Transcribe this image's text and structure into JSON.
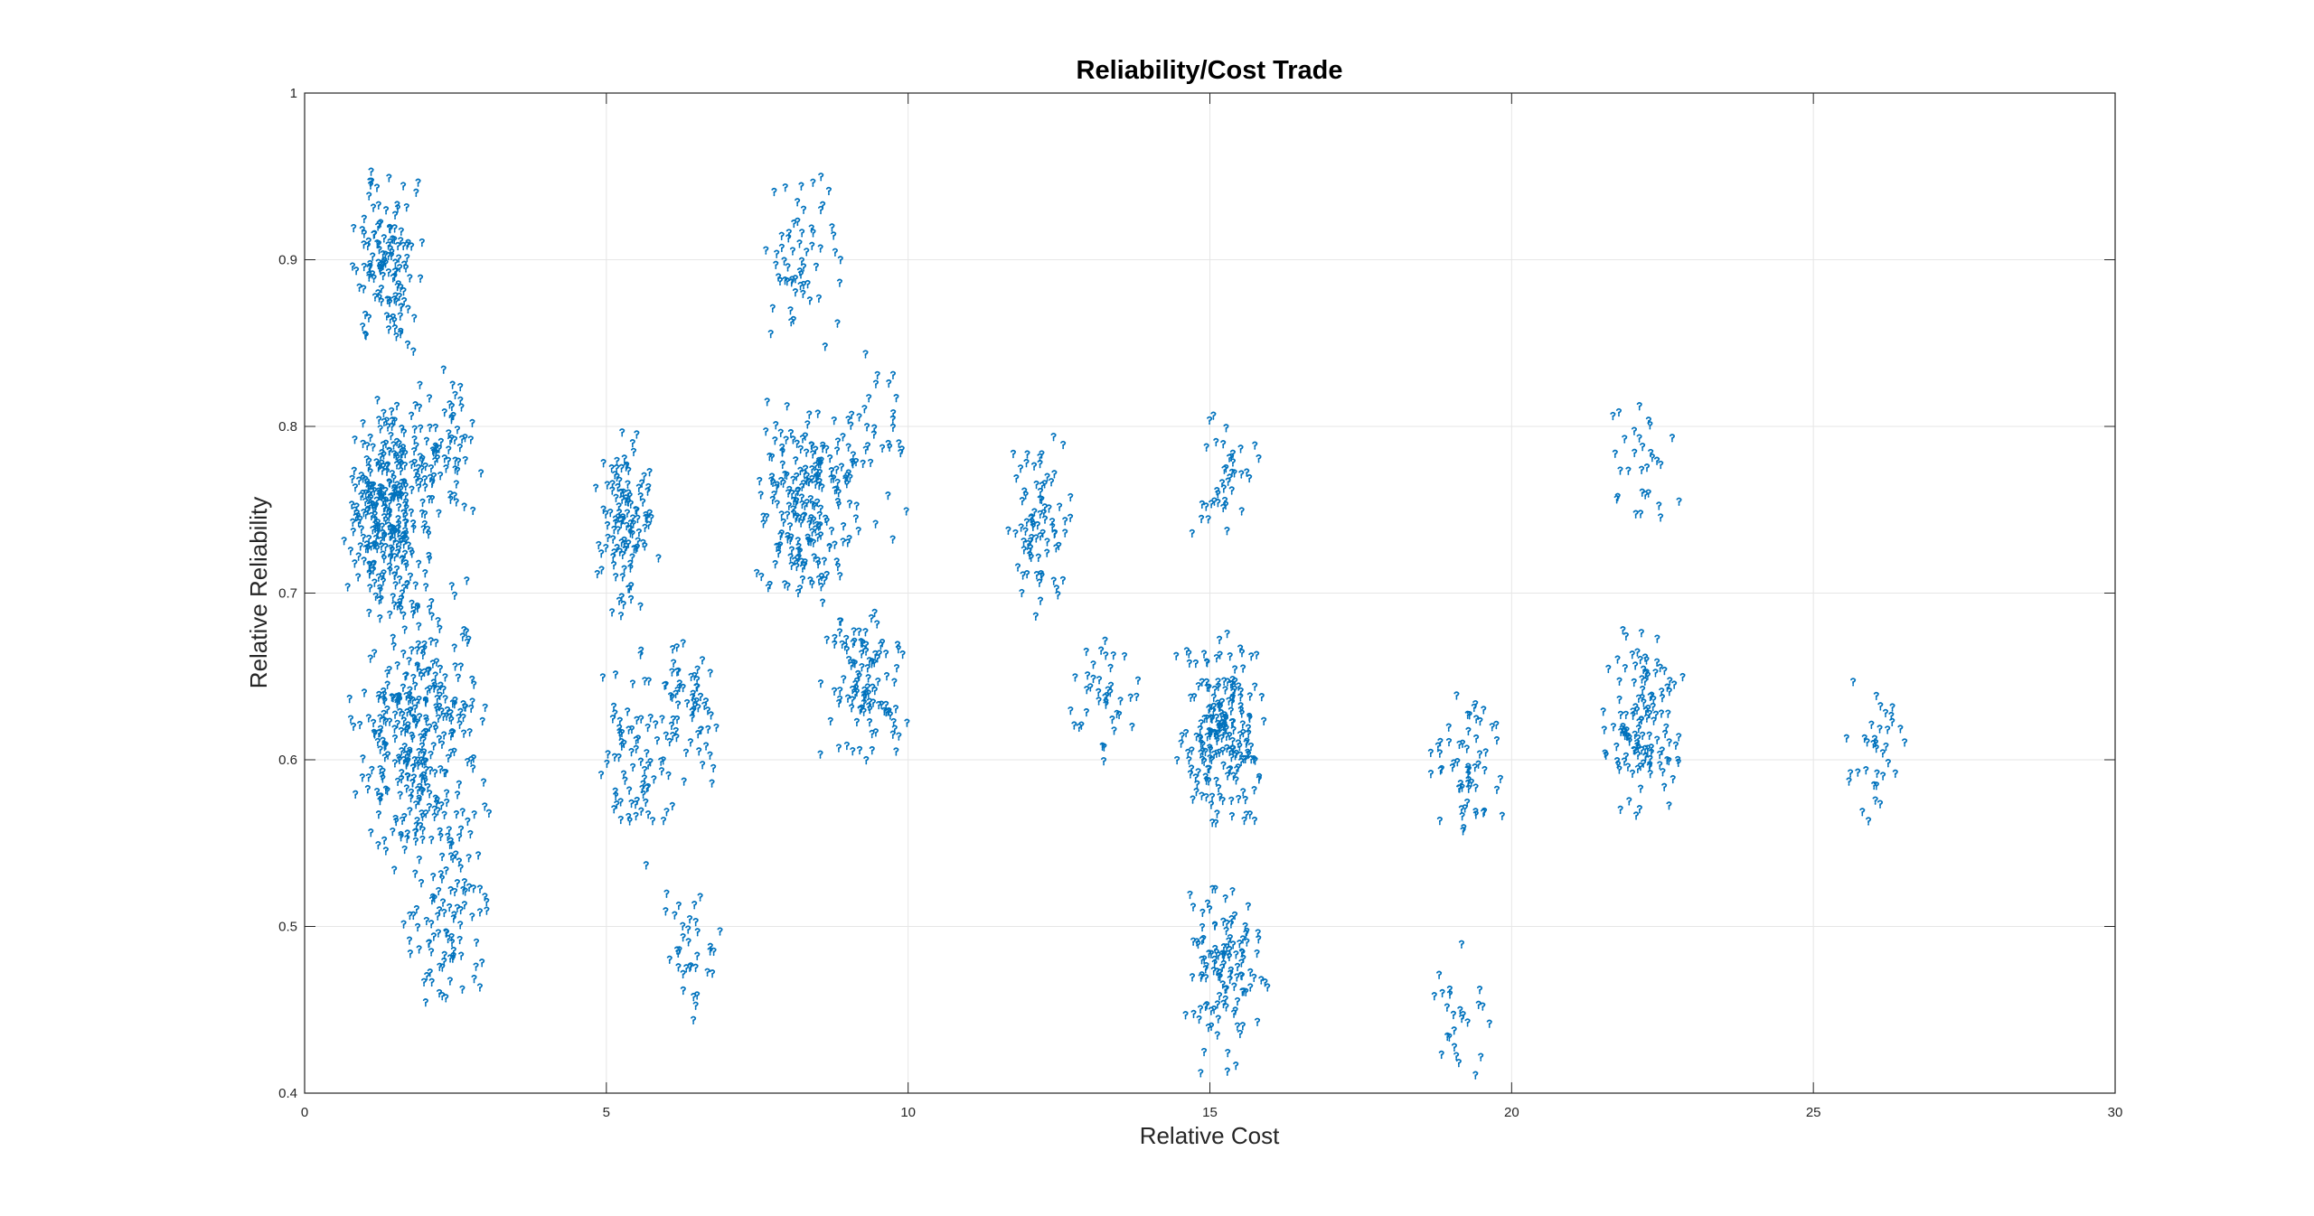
{
  "chart_data": {
    "type": "scatter",
    "title": "Reliability/Cost Trade",
    "xlabel": "Relative Cost",
    "ylabel": "Relative Reliability",
    "xlim": [
      0,
      30
    ],
    "ylim": [
      0.4,
      1
    ],
    "xticks": [
      "0",
      "5",
      "10",
      "15",
      "20",
      "25",
      "30"
    ],
    "yticks": [
      "0.4",
      "0.5",
      "0.6",
      "0.7",
      "0.8",
      "0.9",
      "1"
    ],
    "grid": true,
    "legend": "none",
    "marker_color": "#0072BD",
    "clusters": [
      {
        "x": [
          0.7,
          2.0
        ],
        "y": [
          0.84,
          0.96
        ],
        "n": 130
      },
      {
        "x": [
          0.6,
          2.2
        ],
        "y": [
          0.68,
          0.82
        ],
        "n": 320
      },
      {
        "x": [
          1.8,
          3.0
        ],
        "y": [
          0.74,
          0.84
        ],
        "n": 60
      },
      {
        "x": [
          0.7,
          3.1
        ],
        "y": [
          0.53,
          0.71
        ],
        "n": 340
      },
      {
        "x": [
          1.6,
          3.1
        ],
        "y": [
          0.44,
          0.56
        ],
        "n": 90
      },
      {
        "x": [
          4.8,
          5.9
        ],
        "y": [
          0.68,
          0.8
        ],
        "n": 120
      },
      {
        "x": [
          4.8,
          6.2
        ],
        "y": [
          0.53,
          0.67
        ],
        "n": 80
      },
      {
        "x": [
          5.8,
          7.0
        ],
        "y": [
          0.58,
          0.68
        ],
        "n": 60
      },
      {
        "x": [
          5.8,
          7.0
        ],
        "y": [
          0.44,
          0.53
        ],
        "n": 35
      },
      {
        "x": [
          7.5,
          8.9
        ],
        "y": [
          0.84,
          0.96
        ],
        "n": 60
      },
      {
        "x": [
          7.4,
          9.2
        ],
        "y": [
          0.69,
          0.82
        ],
        "n": 210
      },
      {
        "x": [
          8.7,
          10.0
        ],
        "y": [
          0.73,
          0.85
        ],
        "n": 40
      },
      {
        "x": [
          8.5,
          10.0
        ],
        "y": [
          0.59,
          0.7
        ],
        "n": 110
      },
      {
        "x": [
          11.6,
          12.8
        ],
        "y": [
          0.68,
          0.8
        ],
        "n": 80
      },
      {
        "x": [
          12.6,
          13.9
        ],
        "y": [
          0.59,
          0.68
        ],
        "n": 40
      },
      {
        "x": [
          14.5,
          15.9
        ],
        "y": [
          0.72,
          0.81
        ],
        "n": 40
      },
      {
        "x": [
          14.4,
          16.0
        ],
        "y": [
          0.55,
          0.68
        ],
        "n": 200
      },
      {
        "x": [
          14.5,
          16.0
        ],
        "y": [
          0.41,
          0.53
        ],
        "n": 120
      },
      {
        "x": [
          18.6,
          19.9
        ],
        "y": [
          0.55,
          0.65
        ],
        "n": 60
      },
      {
        "x": [
          18.6,
          19.8
        ],
        "y": [
          0.41,
          0.5
        ],
        "n": 25
      },
      {
        "x": [
          21.4,
          22.8
        ],
        "y": [
          0.72,
          0.82
        ],
        "n": 30
      },
      {
        "x": [
          21.4,
          22.9
        ],
        "y": [
          0.56,
          0.68
        ],
        "n": 130
      },
      {
        "x": [
          25.5,
          26.6
        ],
        "y": [
          0.56,
          0.65
        ],
        "n": 35
      }
    ]
  }
}
